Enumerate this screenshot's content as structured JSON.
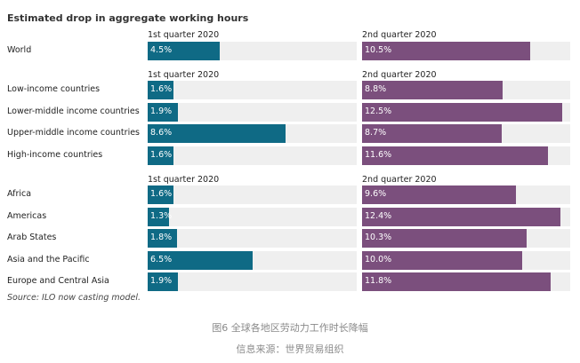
{
  "title": "Estimated drop in aggregate working hours",
  "source": "Source: ILO now casting model.",
  "caption_line1": "图6 全球各地区劳动力工作时长降幅",
  "caption_line2": "信息来源：世界贸易组织",
  "colors": {
    "q1": "#0f6a85",
    "q2": "#7b4f7d",
    "track": "#efefef"
  },
  "chart_data": {
    "type": "bar",
    "title": "Estimated drop in aggregate working hours",
    "unit": "%",
    "xlim": [
      0,
      13
    ],
    "series_names": [
      "1st quarter 2020",
      "2nd quarter 2020"
    ],
    "groups": [
      {
        "rows": [
          {
            "label": "World",
            "q1": 4.5,
            "q2": 10.5
          }
        ]
      },
      {
        "rows": [
          {
            "label": "Low-income countries",
            "q1": 1.6,
            "q2": 8.8
          },
          {
            "label": "Lower-middle income countries",
            "q1": 1.9,
            "q2": 12.5
          },
          {
            "label": "Upper-middle income countries",
            "q1": 8.6,
            "q2": 8.7
          },
          {
            "label": "High-income countries",
            "q1": 1.6,
            "q2": 11.6
          }
        ]
      },
      {
        "rows": [
          {
            "label": "Africa",
            "q1": 1.6,
            "q2": 9.6
          },
          {
            "label": "Americas",
            "q1": 1.3,
            "q2": 12.4
          },
          {
            "label": "Arab States",
            "q1": 1.8,
            "q2": 10.3
          },
          {
            "label": "Asia and the Pacific",
            "q1": 6.5,
            "q2": 10.0
          },
          {
            "label": "Europe and Central Asia",
            "q1": 1.9,
            "q2": 11.8
          }
        ]
      }
    ]
  }
}
